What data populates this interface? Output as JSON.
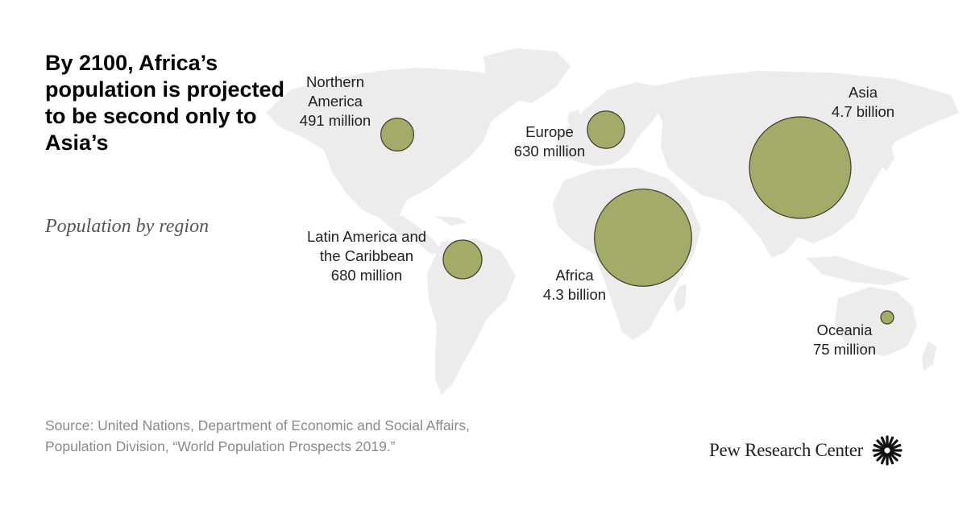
{
  "title": "By 2100, Africa’s population is projected to be second only to Asia’s",
  "subtitle": "Population by region",
  "colors": {
    "bubble": "#a3ab69",
    "bubble_stroke": "#3b3b28",
    "land": "#ececec",
    "text": "#222222",
    "source": "#8a8a8a"
  },
  "regions": [
    {
      "id": "northern-america",
      "label_lines": [
        "Northern",
        "America",
        "491 million"
      ],
      "population_millions": 491
    },
    {
      "id": "europe",
      "label_lines": [
        "Europe",
        "630 million"
      ],
      "population_millions": 630
    },
    {
      "id": "asia",
      "label_lines": [
        "Asia",
        "4.7 billion"
      ],
      "population_millions": 4700
    },
    {
      "id": "latin-america",
      "label_lines": [
        "Latin America and",
        "the Caribbean",
        "680 million"
      ],
      "population_millions": 680
    },
    {
      "id": "africa",
      "label_lines": [
        "Africa",
        "4.3 billion"
      ],
      "population_millions": 4300
    },
    {
      "id": "oceania",
      "label_lines": [
        "Oceania",
        "75 million"
      ],
      "population_millions": 75
    }
  ],
  "source": {
    "line1": "Source: United Nations, Department of Economic and Social Affairs,",
    "line2": "Population Division, “World Population Prospects 2019.”"
  },
  "brand": {
    "name": "Pew Research Center",
    "logo_icon": "pew-sunburst-icon"
  }
}
